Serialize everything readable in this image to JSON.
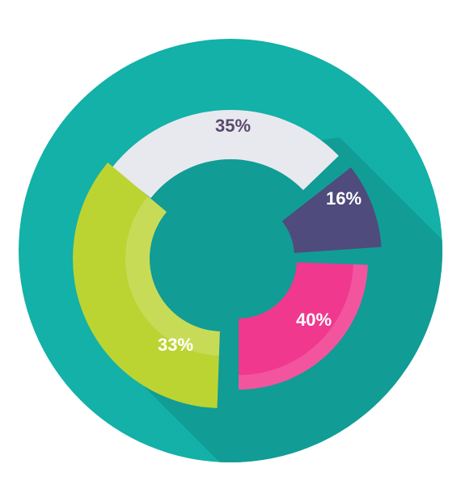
{
  "chart_data": {
    "type": "donut",
    "values": [
      35,
      16,
      40,
      33
    ],
    "value_labels": [
      "35%",
      "16%",
      "40%",
      "33%"
    ],
    "colors": [
      "#e8e9ee",
      "#4f4b7c",
      "#f0388e",
      "#bcd432"
    ],
    "label_colors": [
      "#5a4a6e",
      "#ffffff",
      "#ffffff",
      "#ffffff"
    ]
  }
}
